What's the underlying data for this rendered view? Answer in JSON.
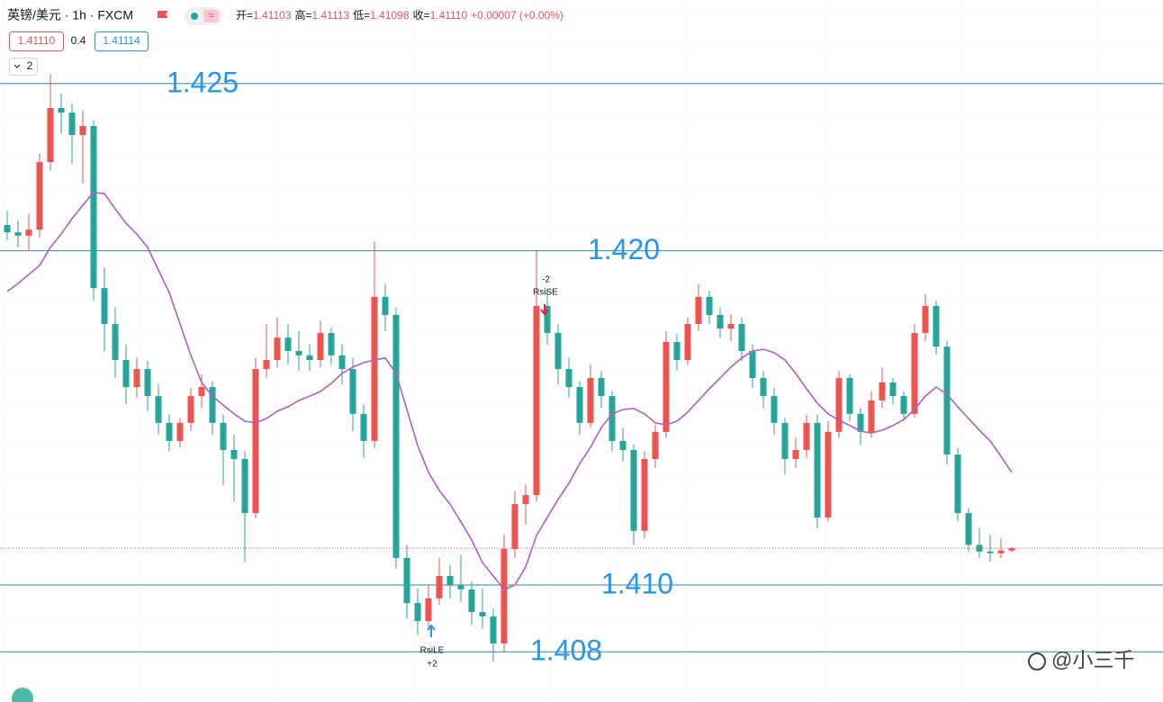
{
  "header": {
    "symbol": "英镑/美元 · 1h · FXCM",
    "open_label": "开=",
    "open": "1.41103",
    "high_label": "高=",
    "high": "1.41113",
    "low_label": "低=",
    "low": "1.41098",
    "close_label": "收=",
    "close": "1.41110",
    "change": "+0.00007 (+0.00%)",
    "bid": "1.41110",
    "spread": "0.4",
    "ask": "1.41114",
    "indicator_count": "2"
  },
  "chart_data": {
    "type": "candlestick",
    "ylim": [
      1.4065,
      1.4275
    ],
    "up_color": "#ef5350",
    "down_color": "#26a69a",
    "ohlc": [
      [
        1.42077,
        1.4212,
        1.4203,
        1.42055
      ],
      [
        1.42055,
        1.4209,
        1.4201,
        1.42045
      ],
      [
        1.42045,
        1.4211,
        1.42,
        1.42063
      ],
      [
        1.42063,
        1.4229,
        1.4204,
        1.42265
      ],
      [
        1.42265,
        1.42529,
        1.4224,
        1.42427
      ],
      [
        1.42427,
        1.4247,
        1.4235,
        1.42413
      ],
      [
        1.42413,
        1.4244,
        1.4226,
        1.42346
      ],
      [
        1.42346,
        1.4242,
        1.422,
        1.42373
      ],
      [
        1.42373,
        1.4239,
        1.4185,
        1.41888
      ],
      [
        1.41888,
        1.4195,
        1.417,
        1.41781
      ],
      [
        1.41781,
        1.4183,
        1.4162,
        1.41673
      ],
      [
        1.41673,
        1.4172,
        1.4154,
        1.41592
      ],
      [
        1.41592,
        1.4168,
        1.4156,
        1.41646
      ],
      [
        1.41646,
        1.4167,
        1.4152,
        1.41565
      ],
      [
        1.41565,
        1.416,
        1.4145,
        1.41485
      ],
      [
        1.41485,
        1.4151,
        1.414,
        1.41431
      ],
      [
        1.41431,
        1.415,
        1.4141,
        1.41485
      ],
      [
        1.41485,
        1.4159,
        1.4146,
        1.41565
      ],
      [
        1.41565,
        1.4163,
        1.4153,
        1.41592
      ],
      [
        1.41592,
        1.4161,
        1.4145,
        1.41485
      ],
      [
        1.41485,
        1.4151,
        1.413,
        1.41404
      ],
      [
        1.41404,
        1.4145,
        1.4125,
        1.41377
      ],
      [
        1.41377,
        1.414,
        1.41068,
        1.41215
      ],
      [
        1.41215,
        1.4168,
        1.412,
        1.41646
      ],
      [
        1.41646,
        1.4178,
        1.4162,
        1.41673
      ],
      [
        1.41673,
        1.418,
        1.4165,
        1.4174
      ],
      [
        1.4174,
        1.4178,
        1.4166,
        1.417
      ],
      [
        1.417,
        1.4176,
        1.4164,
        1.41687
      ],
      [
        1.41687,
        1.4172,
        1.4164,
        1.41673
      ],
      [
        1.41673,
        1.4179,
        1.4165,
        1.41754
      ],
      [
        1.41754,
        1.4177,
        1.4166,
        1.41687
      ],
      [
        1.41687,
        1.4172,
        1.416,
        1.41646
      ],
      [
        1.41646,
        1.4168,
        1.4146,
        1.41512
      ],
      [
        1.41512,
        1.4154,
        1.4138,
        1.41431
      ],
      [
        1.41431,
        1.42029,
        1.4141,
        1.41862
      ],
      [
        1.41862,
        1.419,
        1.4176,
        1.41808
      ],
      [
        1.41808,
        1.4183,
        1.4105,
        1.41081
      ],
      [
        1.41081,
        1.4112,
        1.409,
        1.40946
      ],
      [
        1.40946,
        1.4099,
        1.4085,
        1.40892
      ],
      [
        1.40892,
        1.41,
        1.4087,
        1.4096
      ],
      [
        1.4096,
        1.4108,
        1.4094,
        1.41027
      ],
      [
        1.41027,
        1.4106,
        1.4096,
        1.41
      ],
      [
        1.41,
        1.4109,
        1.4095,
        1.40987
      ],
      [
        1.40987,
        1.4101,
        1.4088,
        1.40919
      ],
      [
        1.40919,
        1.4099,
        1.4087,
        1.40906
      ],
      [
        1.40906,
        1.4093,
        1.40771,
        1.40825
      ],
      [
        1.40825,
        1.4115,
        1.408,
        1.41108
      ],
      [
        1.41108,
        1.4128,
        1.4108,
        1.41242
      ],
      [
        1.41242,
        1.413,
        1.4118,
        1.41269
      ],
      [
        1.41269,
        1.42002,
        1.4125,
        1.41835
      ],
      [
        1.41835,
        1.4188,
        1.4172,
        1.41754
      ],
      [
        1.41754,
        1.4178,
        1.416,
        1.41646
      ],
      [
        1.41646,
        1.4168,
        1.4156,
        1.41592
      ],
      [
        1.41592,
        1.4161,
        1.4145,
        1.41485
      ],
      [
        1.41485,
        1.4166,
        1.4147,
        1.41619
      ],
      [
        1.41619,
        1.4164,
        1.4153,
        1.41565
      ],
      [
        1.41565,
        1.4158,
        1.414,
        1.41431
      ],
      [
        1.41431,
        1.4147,
        1.4137,
        1.41404
      ],
      [
        1.41404,
        1.4142,
        1.4112,
        1.41162
      ],
      [
        1.41162,
        1.414,
        1.4114,
        1.41377
      ],
      [
        1.41377,
        1.4148,
        1.4135,
        1.41458
      ],
      [
        1.41458,
        1.4176,
        1.4144,
        1.41727
      ],
      [
        1.41727,
        1.4175,
        1.4164,
        1.41673
      ],
      [
        1.41673,
        1.418,
        1.4166,
        1.41781
      ],
      [
        1.41781,
        1.419,
        1.4176,
        1.41862
      ],
      [
        1.41862,
        1.4188,
        1.4178,
        1.41808
      ],
      [
        1.41808,
        1.4183,
        1.4174,
        1.41767
      ],
      [
        1.41767,
        1.4181,
        1.4173,
        1.41781
      ],
      [
        1.41781,
        1.418,
        1.4167,
        1.417
      ],
      [
        1.417,
        1.4172,
        1.4159,
        1.41619
      ],
      [
        1.41619,
        1.4164,
        1.4153,
        1.41565
      ],
      [
        1.41565,
        1.4159,
        1.4145,
        1.41485
      ],
      [
        1.41485,
        1.415,
        1.4133,
        1.41377
      ],
      [
        1.41377,
        1.4144,
        1.4135,
        1.41404
      ],
      [
        1.41404,
        1.4151,
        1.4138,
        1.41485
      ],
      [
        1.41485,
        1.4151,
        1.4117,
        1.41202
      ],
      [
        1.41202,
        1.4149,
        1.4119,
        1.41458
      ],
      [
        1.41458,
        1.4164,
        1.4144,
        1.41619
      ],
      [
        1.41619,
        1.4163,
        1.4149,
        1.41512
      ],
      [
        1.41512,
        1.4153,
        1.4142,
        1.41458
      ],
      [
        1.41458,
        1.4158,
        1.4144,
        1.41552
      ],
      [
        1.41552,
        1.4165,
        1.4153,
        1.41606
      ],
      [
        1.41606,
        1.4162,
        1.4154,
        1.41565
      ],
      [
        1.41565,
        1.4158,
        1.4149,
        1.41512
      ],
      [
        1.41512,
        1.4178,
        1.415,
        1.41754
      ],
      [
        1.41754,
        1.4187,
        1.4173,
        1.41835
      ],
      [
        1.41835,
        1.4185,
        1.4169,
        1.41713
      ],
      [
        1.41713,
        1.4173,
        1.4136,
        1.4139
      ],
      [
        1.4139,
        1.4141,
        1.4119,
        1.41215
      ],
      [
        1.41215,
        1.4123,
        1.411,
        1.4112
      ],
      [
        1.4112,
        1.4117,
        1.4108,
        1.411
      ],
      [
        1.411,
        1.4115,
        1.4107,
        1.41095
      ],
      [
        1.41095,
        1.4114,
        1.4108,
        1.41103
      ],
      [
        1.41103,
        1.41113,
        1.41098,
        1.4111
      ]
    ],
    "ma": {
      "color": "#b45cc4",
      "values": [
        1.41878,
        1.41902,
        1.41929,
        1.41956,
        1.4201,
        1.4205,
        1.42096,
        1.42136,
        1.42174,
        1.42171,
        1.42125,
        1.42082,
        1.4205,
        1.4201,
        1.41942,
        1.41875,
        1.41781,
        1.41687,
        1.41606,
        1.41565,
        1.41538,
        1.41512,
        1.4149,
        1.41485,
        1.41498,
        1.4152,
        1.41533,
        1.41552,
        1.41565,
        1.41579,
        1.41603,
        1.41633,
        1.41652,
        1.41665,
        1.41673,
        1.41679,
        1.41633,
        1.41525,
        1.41417,
        1.41337,
        1.41283,
        1.41242,
        1.41189,
        1.41135,
        1.41067,
        1.41027,
        1.40987,
        1.41,
        1.41054,
        1.41148,
        1.41202,
        1.41256,
        1.41304,
        1.41363,
        1.41412,
        1.41471,
        1.41512,
        1.41525,
        1.41528,
        1.41512,
        1.41485,
        1.41479,
        1.4149,
        1.41517,
        1.41552,
        1.41587,
        1.41619,
        1.41652,
        1.41679,
        1.417,
        1.41705,
        1.41695,
        1.41673,
        1.41633,
        1.41587,
        1.41544,
        1.41512,
        1.41493,
        1.41477,
        1.4146,
        1.41455,
        1.41463,
        1.41477,
        1.41495,
        1.41525,
        1.41565,
        1.41592,
        1.41571,
        1.41533,
        1.41498,
        1.41463,
        1.41431,
        1.41385,
        1.41337
      ]
    },
    "hline_color": "#2a88b0",
    "hline_label_color": "#2196f3",
    "hlines": [
      {
        "value": 1.425,
        "label": "1.425"
      },
      {
        "value": 1.42,
        "label": "1.420"
      },
      {
        "value": 1.41,
        "label": "1.410"
      },
      {
        "value": 1.408,
        "label": "1.408"
      }
    ],
    "last_price_color": "#ef5350",
    "signals": {
      "short_count": "-2",
      "short_name": "RsiSE",
      "long_name": "RsiLE",
      "long_count": "+2"
    }
  },
  "watermark": "@小三千"
}
